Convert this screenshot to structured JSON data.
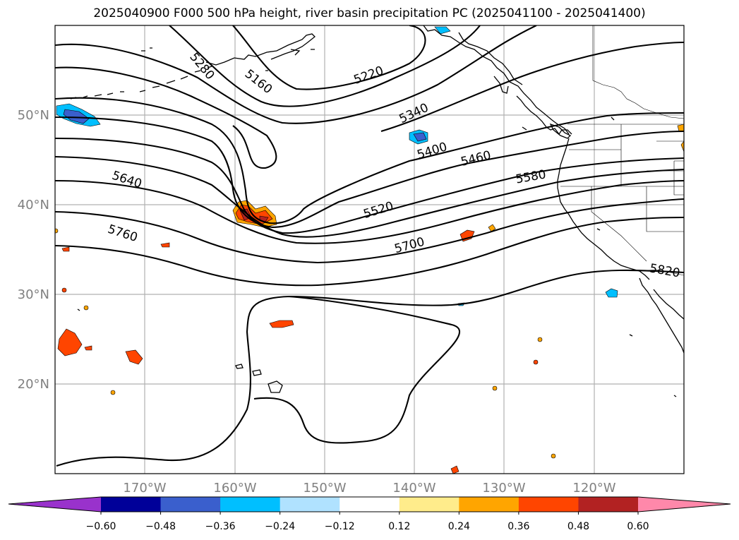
{
  "title": "2025040900 F000 500 hPa height, river basin precipitation PC (2025041100 - 2025041400)",
  "map": {
    "lon_range": [
      -180,
      -110
    ],
    "lat_range": [
      10,
      60
    ],
    "gridlines": true,
    "lat_labels": [
      "50°N",
      "40°N",
      "30°N",
      "20°N"
    ],
    "lon_labels": [
      "170°W",
      "160°W",
      "150°W",
      "140°W",
      "130°W",
      "120°W"
    ],
    "contour_labels": [
      "5280",
      "5160",
      "5220",
      "5340",
      "5400",
      "5460",
      "5640",
      "5580",
      "5520",
      "5760",
      "5700",
      "5820"
    ]
  },
  "colorbar": {
    "ticks": [
      "−0.60",
      "−0.48",
      "−0.36",
      "−0.24",
      "−0.12",
      "0.12",
      "0.24",
      "0.36",
      "0.48",
      "0.60"
    ],
    "colors": [
      "#9932CC",
      "#000099",
      "#3A5FCD",
      "#00BFFF",
      "#B0E2FF",
      "#FFFFFF",
      "#FFEC8B",
      "#FFA500",
      "#FF4500",
      "#B22222",
      "#FF88AA"
    ]
  }
}
